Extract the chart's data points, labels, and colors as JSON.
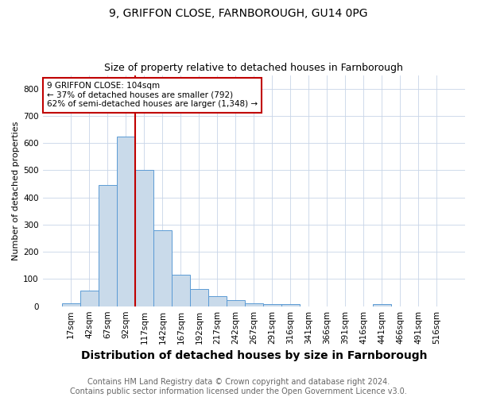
{
  "title": "9, GRIFFON CLOSE, FARNBOROUGH, GU14 0PG",
  "subtitle": "Size of property relative to detached houses in Farnborough",
  "xlabel": "Distribution of detached houses by size in Farnborough",
  "ylabel": "Number of detached properties",
  "footer_line1": "Contains HM Land Registry data © Crown copyright and database right 2024.",
  "footer_line2": "Contains public sector information licensed under the Open Government Licence v3.0.",
  "categories": [
    "17sqm",
    "42sqm",
    "67sqm",
    "92sqm",
    "117sqm",
    "142sqm",
    "167sqm",
    "192sqm",
    "217sqm",
    "242sqm",
    "267sqm",
    "291sqm",
    "316sqm",
    "341sqm",
    "366sqm",
    "391sqm",
    "416sqm",
    "441sqm",
    "466sqm",
    "491sqm",
    "516sqm"
  ],
  "values": [
    11,
    57,
    447,
    624,
    500,
    280,
    115,
    63,
    37,
    22,
    10,
    8,
    8,
    0,
    0,
    0,
    0,
    7,
    0,
    0,
    0
  ],
  "bar_color": "#c9daea",
  "bar_edge_color": "#5b9bd5",
  "vline_x_index": 3.5,
  "vline_color": "#c00000",
  "annotation_text": "9 GRIFFON CLOSE: 104sqm\n← 37% of detached houses are smaller (792)\n62% of semi-detached houses are larger (1,348) →",
  "annotation_box_color": "#ffffff",
  "annotation_box_edge": "#c00000",
  "ylim": [
    0,
    850
  ],
  "yticks": [
    0,
    100,
    200,
    300,
    400,
    500,
    600,
    700,
    800
  ],
  "bg_color": "#ffffff",
  "grid_color": "#c8d4e8",
  "title_fontsize": 10,
  "subtitle_fontsize": 9,
  "xlabel_fontsize": 10,
  "ylabel_fontsize": 8,
  "tick_fontsize": 7.5,
  "annotation_fontsize": 7.5,
  "footer_fontsize": 7
}
